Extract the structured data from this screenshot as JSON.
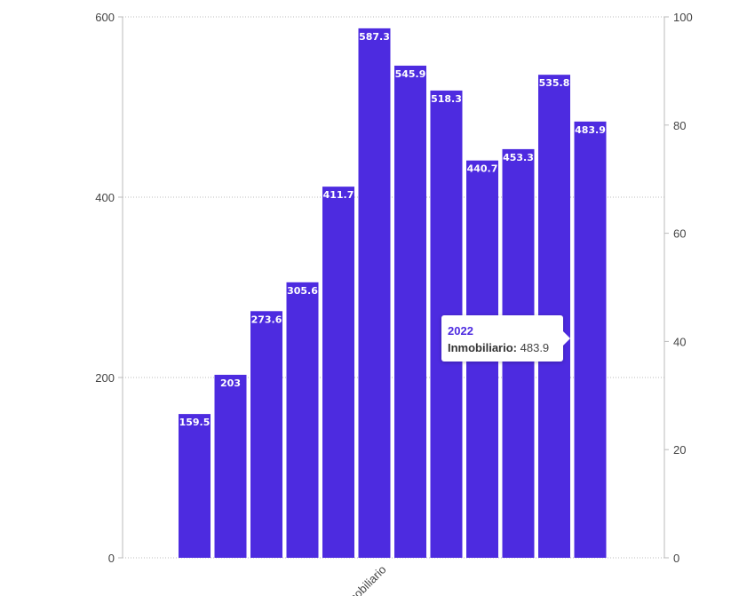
{
  "chart_data": {
    "type": "bar",
    "categories": [
      "",
      "",
      "",
      "",
      "",
      "",
      "",
      "",
      "",
      "",
      "",
      ""
    ],
    "category_axis_label": "Inmobiliario",
    "series": [
      {
        "name": "Inmobiliario",
        "color": "#4d2be0",
        "values": [
          159.5,
          203,
          273.6,
          305.6,
          411.7,
          587.3,
          545.9,
          518.3,
          440.7,
          453.3,
          535.8,
          483.9
        ]
      }
    ],
    "data_labels": [
      "159.5",
      "203",
      "273.6",
      "305.6",
      "411.7",
      "587.3",
      "545.9",
      "518.3",
      "440.7",
      "453.3",
      "535.8",
      "483.9"
    ],
    "y_left": {
      "ticks": [
        0,
        200,
        400,
        600
      ],
      "ylim": [
        0,
        600
      ]
    },
    "y_right": {
      "ticks": [
        0,
        20,
        40,
        60,
        80,
        100
      ],
      "ylim": [
        0,
        100
      ]
    },
    "grid": "horizontal dotted",
    "tooltip": {
      "title": "2022",
      "series_label": "Inmobiliario:",
      "value": "483.9",
      "target_index": 11
    },
    "colors": {
      "bar": "#4d2be0",
      "grid": "#bbbbbb",
      "text": "#444444"
    }
  }
}
